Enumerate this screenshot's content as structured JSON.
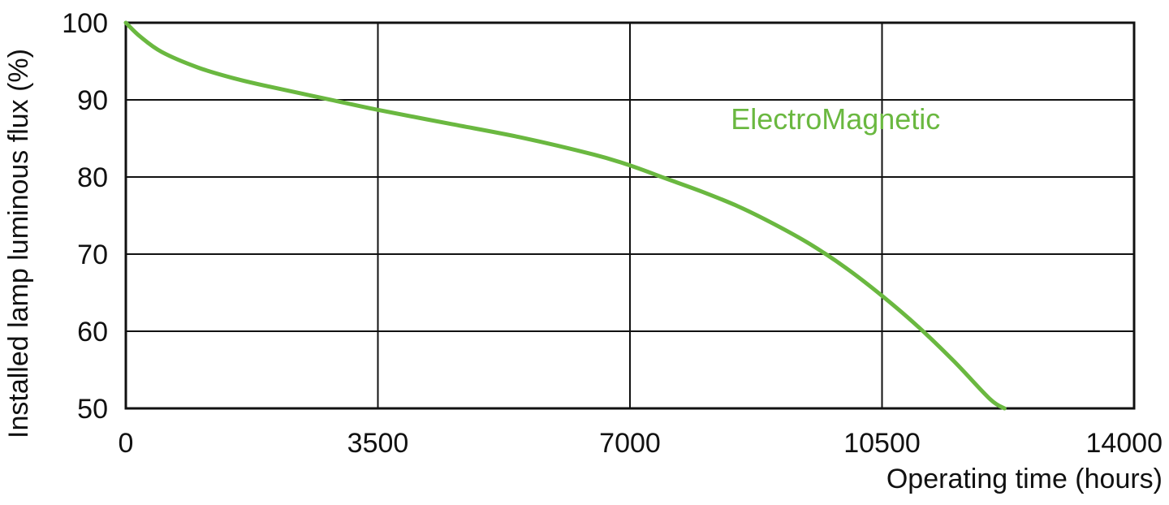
{
  "chart_data": {
    "type": "line",
    "title": "",
    "xlabel": "Operating time (hours)",
    "ylabel": "Installed lamp luminous flux  (%)",
    "xlim": [
      0,
      14000
    ],
    "ylim": [
      50,
      100
    ],
    "x_ticks": [
      0,
      3500,
      7000,
      10500,
      14000
    ],
    "x_tick_labels": [
      "0",
      "3500",
      "7000",
      "10500",
      "14000"
    ],
    "y_ticks": [
      50,
      60,
      70,
      80,
      90,
      100
    ],
    "y_tick_labels": [
      "50",
      "60",
      "70",
      "80",
      "90",
      "100"
    ],
    "grid": true,
    "series": [
      {
        "name": "ElectroMagnetic",
        "color": "#6ab840",
        "label_x": 8400,
        "label_y": 86.2,
        "points": [
          [
            0,
            100
          ],
          [
            200,
            98.2
          ],
          [
            500,
            96.2
          ],
          [
            1000,
            94.2
          ],
          [
            1500,
            92.8
          ],
          [
            2000,
            91.7
          ],
          [
            2800,
            90.1
          ],
          [
            3500,
            88.7
          ],
          [
            4500,
            86.9
          ],
          [
            5500,
            85.1
          ],
          [
            6500,
            82.9
          ],
          [
            7000,
            81.5
          ],
          [
            7500,
            79.8
          ],
          [
            8000,
            78.1
          ],
          [
            8500,
            76.2
          ],
          [
            9000,
            73.9
          ],
          [
            9500,
            71.3
          ],
          [
            10000,
            68.2
          ],
          [
            10500,
            64.6
          ],
          [
            11000,
            60.6
          ],
          [
            11500,
            56.1
          ],
          [
            12000,
            51.2
          ],
          [
            12200,
            50
          ]
        ]
      }
    ]
  }
}
